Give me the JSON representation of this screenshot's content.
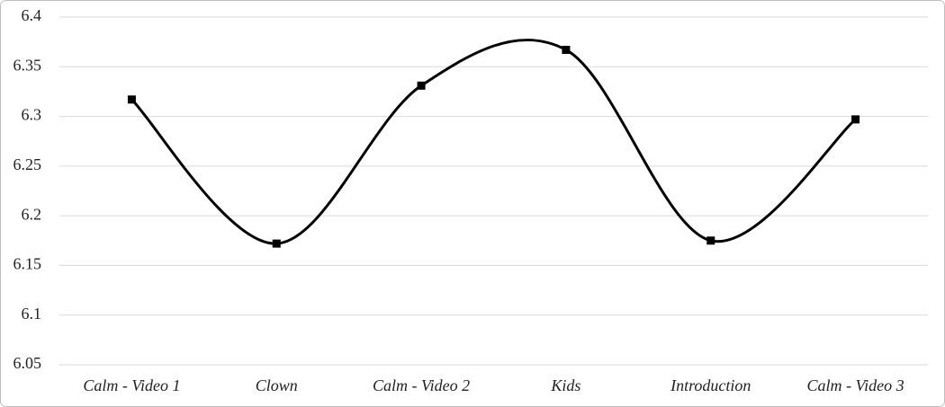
{
  "chart_data": {
    "type": "line",
    "categories": [
      "Calm - Video 1",
      "Clown",
      "Calm - Video 2",
      "Kids",
      "Introduction",
      "Calm - Video 3"
    ],
    "values": [
      6.317,
      6.172,
      6.331,
      6.367,
      6.175,
      6.297
    ],
    "color": "#000000",
    "smooth": true,
    "marker": "square",
    "ylim": [
      6.05,
      6.4
    ],
    "yticks": [
      6.05,
      6.1,
      6.15,
      6.2,
      6.25,
      6.3,
      6.35,
      6.4
    ],
    "grid": true
  }
}
